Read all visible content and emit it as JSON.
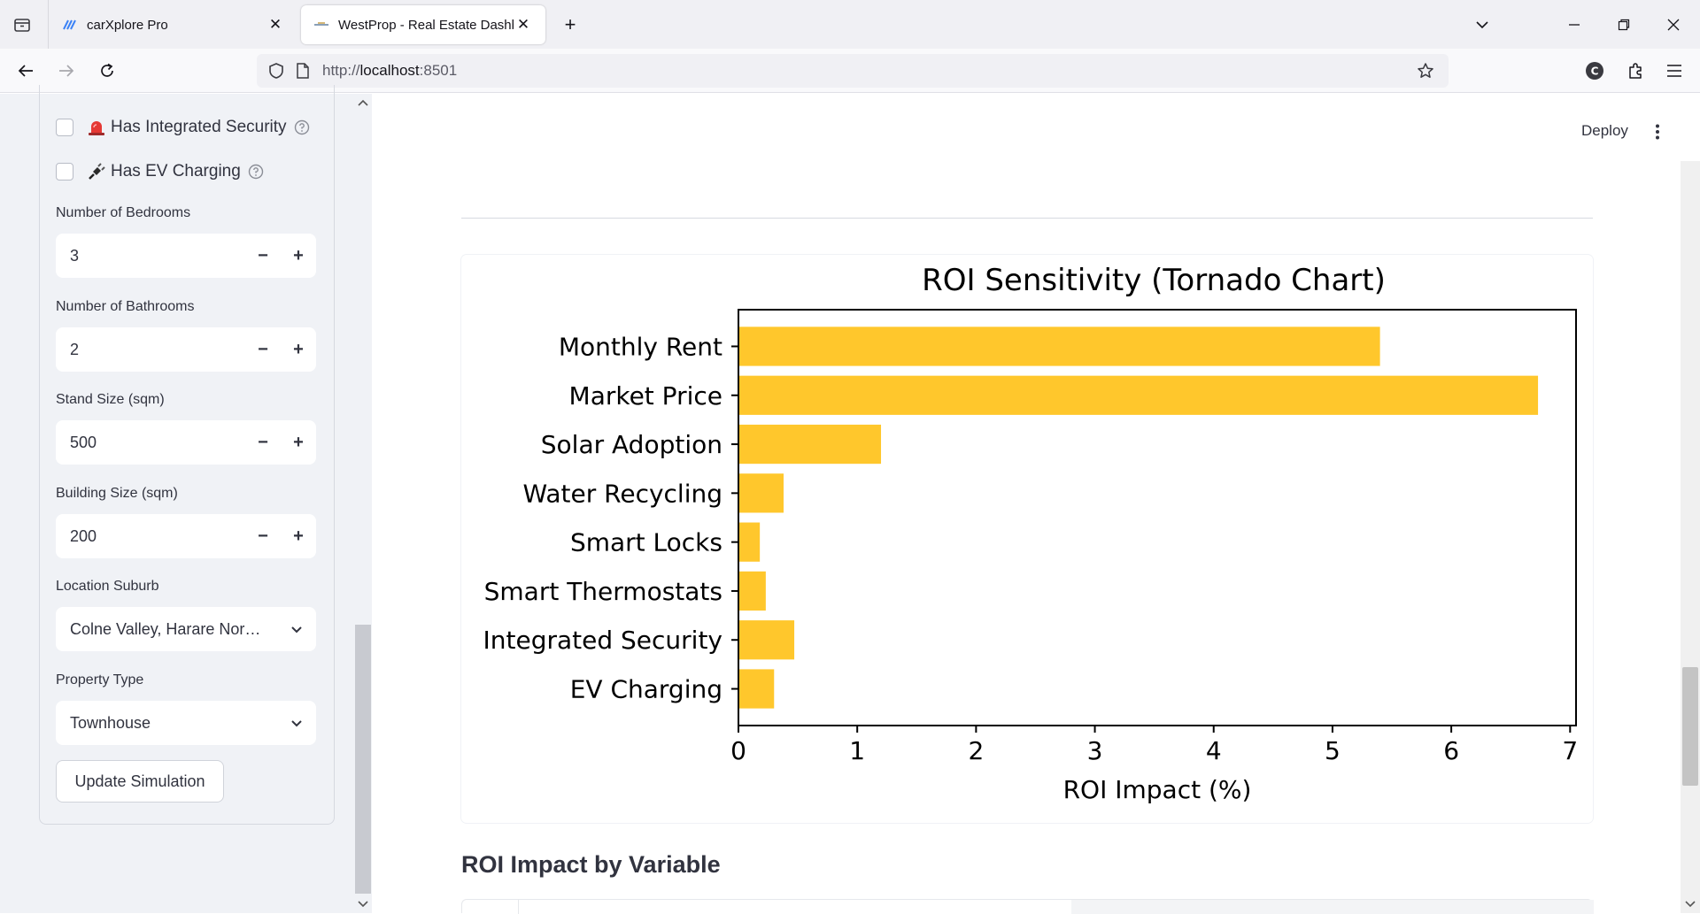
{
  "browser": {
    "tabs": [
      {
        "title": "carXplore Pro",
        "active": false
      },
      {
        "title": "WestProp - Real Estate Dashboard",
        "active": true
      }
    ],
    "url_scheme": "http://",
    "url_host": "localhost",
    "url_port": ":8501",
    "new_tab_icon": "plus-icon",
    "accent": "#0060df"
  },
  "sidebar": {
    "checkboxes": [
      {
        "label": "Has Integrated Security",
        "icon": "alarm-light-icon",
        "checked": false
      },
      {
        "label": "Has EV Charging",
        "icon": "plug-icon",
        "checked": false
      }
    ],
    "bedrooms": {
      "label": "Number of Bedrooms",
      "value": "3"
    },
    "bathrooms": {
      "label": "Number of Bathrooms",
      "value": "2"
    },
    "stand_size": {
      "label": "Stand Size (sqm)",
      "value": "500"
    },
    "building_size": {
      "label": "Building Size (sqm)",
      "value": "200"
    },
    "location": {
      "label": "Location Suburb",
      "value": "Colne Valley, Harare Nor…"
    },
    "property_type": {
      "label": "Property Type",
      "value": "Townhouse"
    },
    "update_label": "Update Simulation",
    "minus": "−",
    "plus": "+"
  },
  "main": {
    "deploy_label": "Deploy",
    "section_heading": "ROI Impact by Variable"
  },
  "chart_data": {
    "type": "bar",
    "orientation": "horizontal",
    "title": "ROI Sensitivity (Tornado Chart)",
    "xlabel": "ROI Impact (%)",
    "ylabel": "",
    "categories": [
      "Monthly Rent",
      "Market Price",
      "Solar Adoption",
      "Water Recycling",
      "Smart Locks",
      "Smart Thermostats",
      "Integrated Security",
      "EV Charging"
    ],
    "values": [
      5.4,
      6.73,
      1.2,
      0.38,
      0.18,
      0.23,
      0.47,
      0.3
    ],
    "xlim": [
      0,
      7.05
    ],
    "xticks": [
      "0",
      "1",
      "2",
      "3",
      "4",
      "5",
      "6",
      "7"
    ],
    "bar_color": "#ffc72c",
    "grid": false,
    "legend": "none"
  }
}
